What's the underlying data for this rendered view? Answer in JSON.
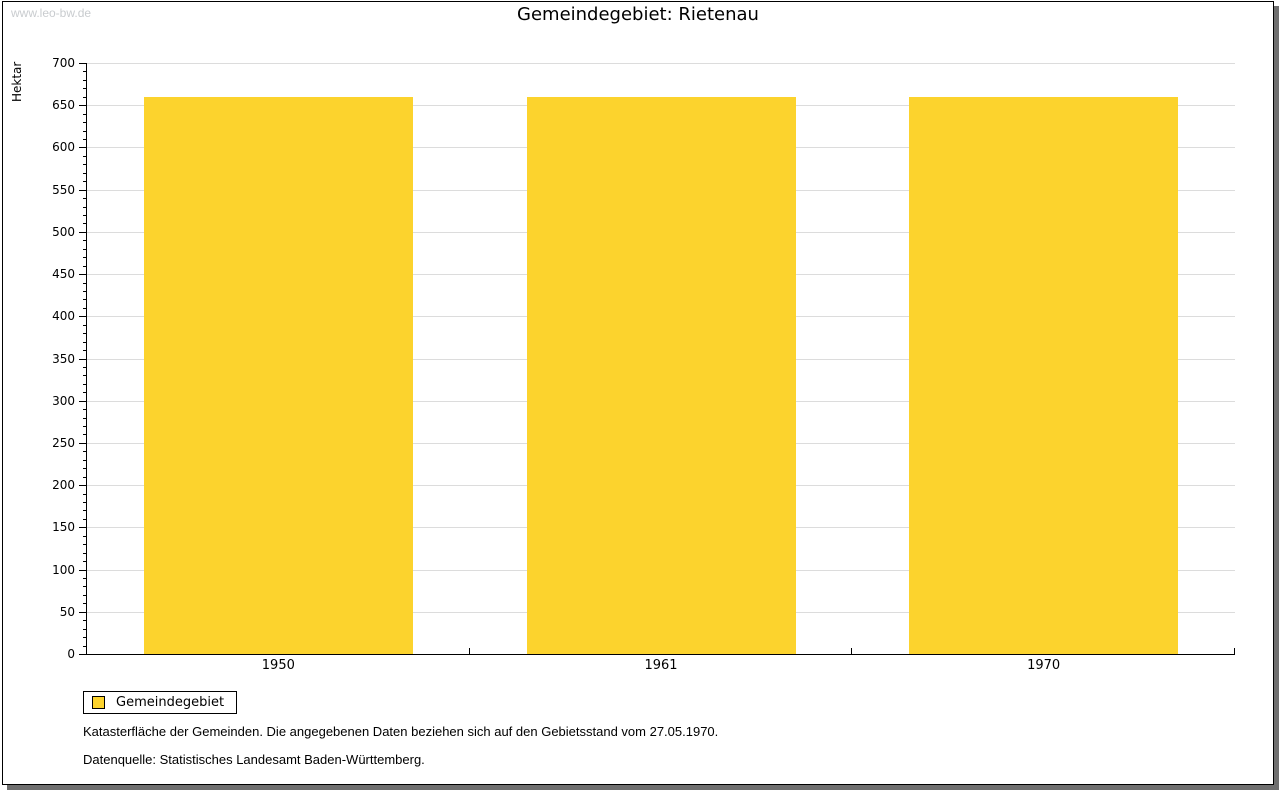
{
  "watermark": "www.leo-bw.de",
  "chart_data": {
    "type": "bar",
    "title": "Gemeindegebiet: Rietenau",
    "categories": [
      "1950",
      "1961",
      "1970"
    ],
    "series": [
      {
        "name": "Gemeindegebiet",
        "color": "#FCD32D",
        "values": [
          660,
          660,
          660
        ]
      }
    ],
    "xlabel": "",
    "ylabel": "Hektar",
    "ylim": [
      0,
      700
    ],
    "ytick_major": 50,
    "ytick_minor": 10,
    "grid": "horizontal-major",
    "gridline_color": "#dcdcdc",
    "legend_position": "bottom-left"
  },
  "legend": {
    "items": [
      {
        "label": "Gemeindegebiet",
        "color": "#FCD32D"
      }
    ]
  },
  "footnotes": [
    "Katasterfläche der Gemeinden. Die angegebenen Daten beziehen sich auf den Gebietsstand vom 27.05.1970.",
    "Datenquelle: Statistisches Landesamt Baden-Württemberg."
  ]
}
